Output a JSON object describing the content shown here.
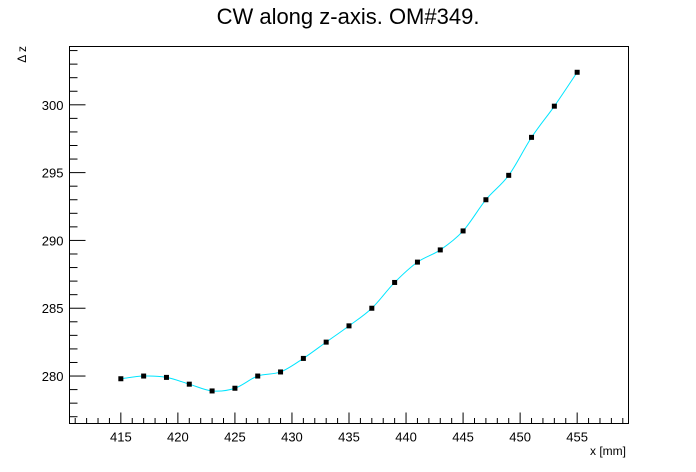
{
  "chart_data": {
    "type": "line",
    "title": "CW along z-axis. OM#349.",
    "xlabel": "x [mm]",
    "ylabel": "Δ z",
    "xlim": [
      410.5,
      459.5
    ],
    "ylim": [
      276.5,
      304.3
    ],
    "x_ticks": [
      415,
      420,
      425,
      430,
      435,
      440,
      445,
      450,
      455
    ],
    "y_ticks": [
      280,
      285,
      290,
      295,
      300
    ],
    "grid": false,
    "line_color": "#00e5ff",
    "marker_color": "#000000",
    "series": [
      {
        "x": [
          415,
          417,
          419,
          421,
          423,
          425,
          427,
          429,
          431,
          433,
          435,
          437,
          439,
          441,
          443,
          445,
          447,
          449,
          451,
          453,
          455
        ],
        "y": [
          279.8,
          280.0,
          279.9,
          279.4,
          278.9,
          279.1,
          280.0,
          280.3,
          281.3,
          282.5,
          283.7,
          285.0,
          286.9,
          288.4,
          289.3,
          290.7,
          293.0,
          294.8,
          297.6,
          299.9,
          302.4
        ]
      }
    ]
  }
}
